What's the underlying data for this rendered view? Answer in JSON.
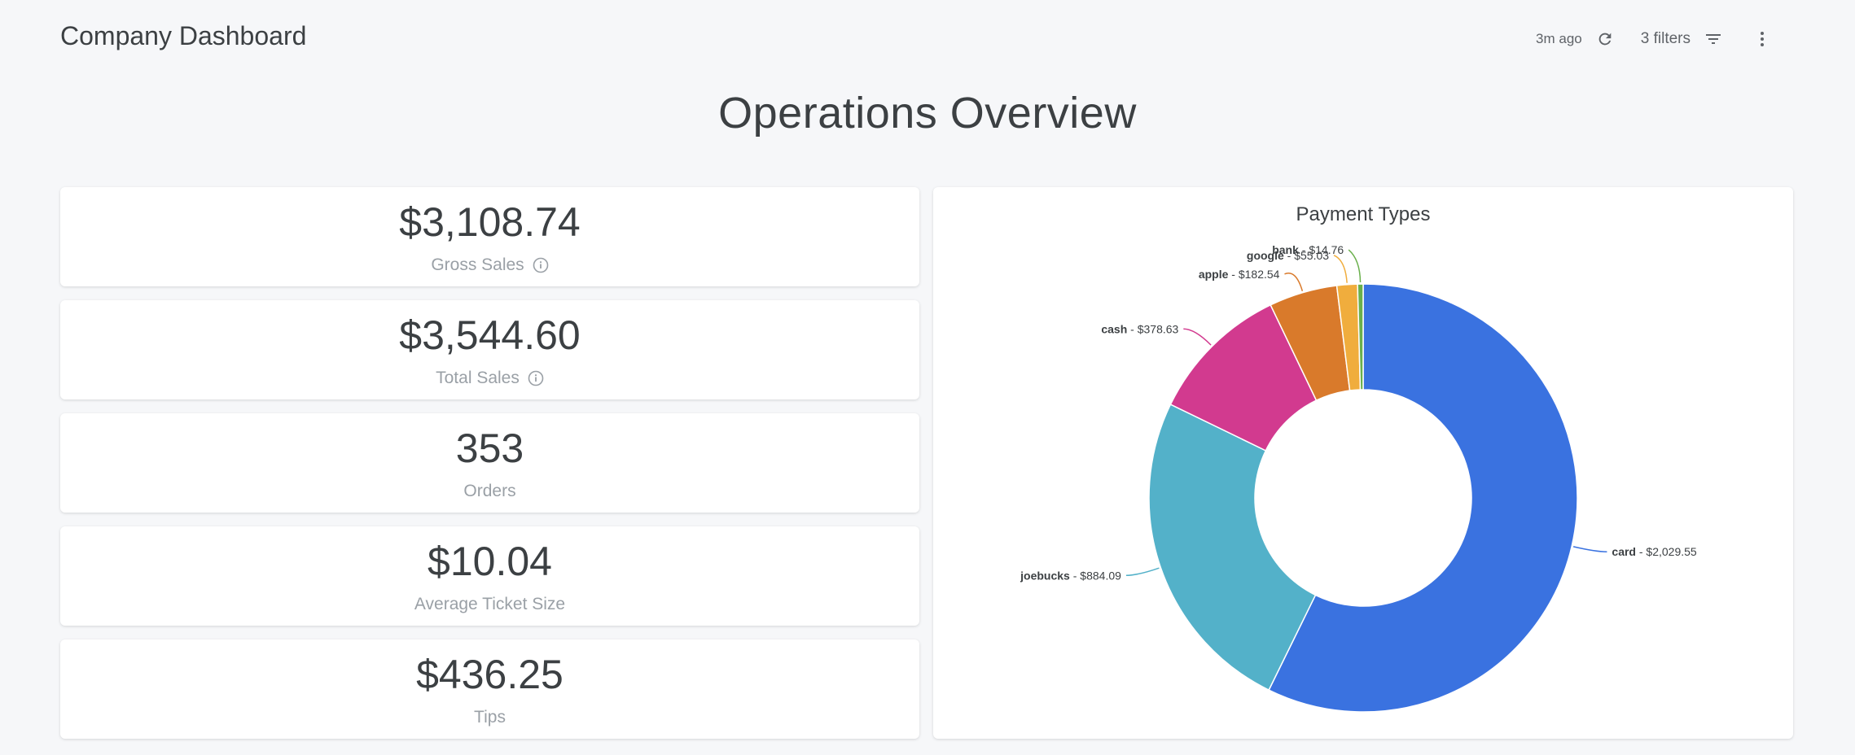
{
  "header": {
    "title": "Company Dashboard",
    "refreshed": "3m ago",
    "filters_label": "3 filters"
  },
  "page_title": "Operations Overview",
  "kpis": [
    {
      "value": "$3,108.74",
      "label": "Gross Sales",
      "has_info": true
    },
    {
      "value": "$3,544.60",
      "label": "Total Sales",
      "has_info": true
    },
    {
      "value": "353",
      "label": "Orders",
      "has_info": false
    },
    {
      "value": "$10.04",
      "label": "Average Ticket Size",
      "has_info": false
    },
    {
      "value": "$436.25",
      "label": "Tips",
      "has_info": false
    }
  ],
  "icons": {
    "refresh": "refresh-icon",
    "filter": "filter-icon",
    "more": "more-vert-icon",
    "info": "info-icon"
  },
  "chart_data": {
    "type": "pie",
    "title": "Payment Types",
    "hole": true,
    "categories": [
      "card",
      "joebucks",
      "cash",
      "apple",
      "google",
      "bank"
    ],
    "values": [
      2029.55,
      884.09,
      378.63,
      182.54,
      55.03,
      14.76
    ],
    "value_labels": [
      "$2,029.55",
      "$884.09",
      "$378.63",
      "$182.54",
      "$55.03",
      "$14.76"
    ],
    "colors": [
      "#3a72e0",
      "#53b1c9",
      "#d23a8f",
      "#d97a2b",
      "#f0ad3d",
      "#6ab04c"
    ]
  }
}
